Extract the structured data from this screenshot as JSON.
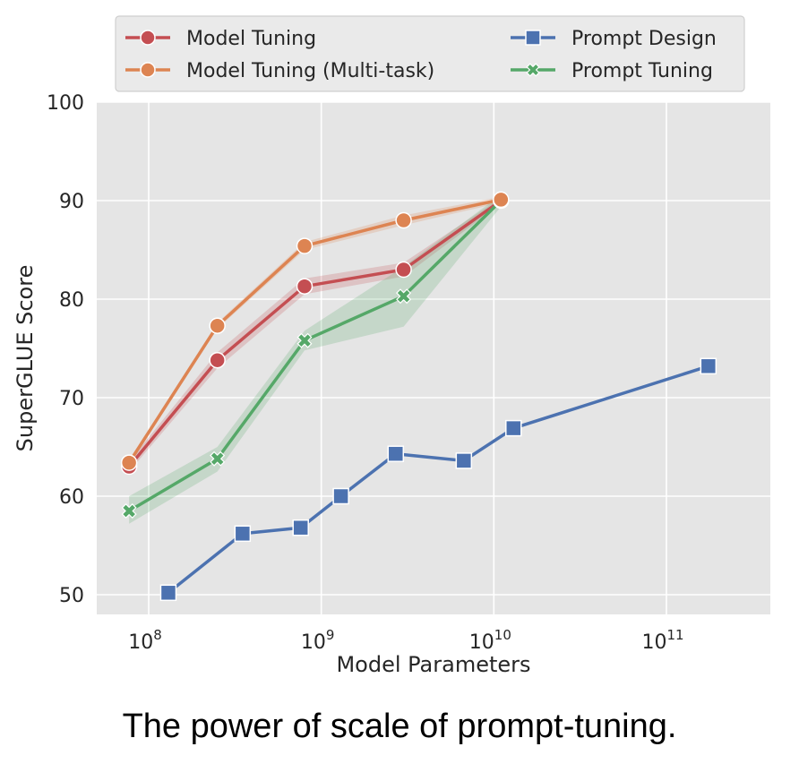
{
  "caption": "The power of scale of prompt-tuning.",
  "chart_data": {
    "type": "line",
    "xlabel": "Model Parameters",
    "ylabel": "SuperGLUE Score",
    "xscale": "log",
    "xlim": [
      50000000,
      400000000000
    ],
    "ylim": [
      48,
      100
    ],
    "yticks": [
      50,
      60,
      70,
      80,
      90,
      100
    ],
    "xticks": [
      {
        "base": "10",
        "exp": "8",
        "value": 100000000
      },
      {
        "base": "10",
        "exp": "9",
        "value": 1000000000
      },
      {
        "base": "10",
        "exp": "10",
        "value": 10000000000
      },
      {
        "base": "10",
        "exp": "11",
        "value": 100000000000
      }
    ],
    "grid": true,
    "background": "#e5e5e5",
    "legend_position": "top",
    "series": [
      {
        "name": "Model Tuning",
        "color": "#c44e52",
        "marker": "circle",
        "x": [
          77000000,
          250000000,
          800000000,
          3000000000,
          11000000000
        ],
        "y": [
          63.0,
          73.8,
          81.3,
          83.0,
          90.0
        ],
        "band_low": [
          62.5,
          73.0,
          80.5,
          82.3,
          89.7
        ],
        "band_high": [
          63.5,
          74.6,
          82.1,
          83.7,
          90.3
        ]
      },
      {
        "name": "Model Tuning (Multi-task)",
        "color": "#dd8452",
        "marker": "circle",
        "x": [
          77000000,
          250000000,
          800000000,
          3000000000,
          11000000000
        ],
        "y": [
          63.4,
          77.3,
          85.4,
          88.0,
          90.1
        ],
        "band_low": [
          63.1,
          77.0,
          85.0,
          87.5,
          89.8
        ],
        "band_high": [
          63.7,
          77.6,
          85.8,
          88.5,
          90.4
        ]
      },
      {
        "name": "Prompt Design",
        "color": "#4c72b0",
        "marker": "square",
        "x": [
          130000000,
          350000000,
          760000000,
          1300000000,
          2700000000,
          6700000000,
          13000000000,
          175000000000
        ],
        "y": [
          50.2,
          56.2,
          56.8,
          60.0,
          64.3,
          63.6,
          66.9,
          73.2
        ]
      },
      {
        "name": "Prompt Tuning",
        "color": "#55a868",
        "marker": "x",
        "x": [
          77000000,
          250000000,
          800000000,
          3000000000,
          11000000000
        ],
        "y": [
          58.5,
          63.8,
          75.8,
          80.3,
          90.0
        ],
        "band_low": [
          57.2,
          62.5,
          74.8,
          77.2,
          89.4
        ],
        "band_high": [
          60.0,
          65.0,
          76.8,
          83.3,
          90.6
        ]
      }
    ]
  }
}
